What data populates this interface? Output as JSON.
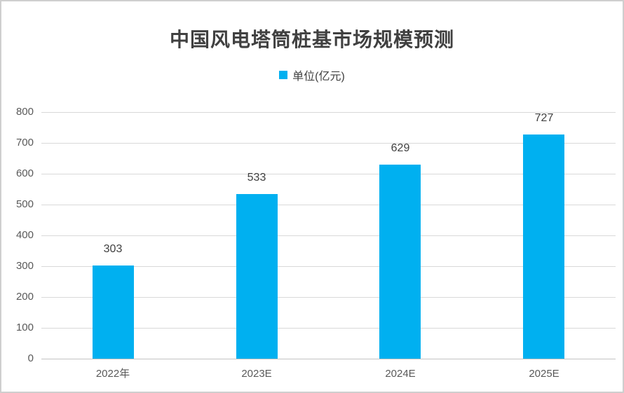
{
  "chart_data": {
    "type": "bar",
    "title": "中国风电塔筒桩基市场规模预测",
    "legend": "单位(亿元)",
    "legend_position": "top",
    "categories": [
      "2022年",
      "2023E",
      "2024E",
      "2025E"
    ],
    "values": [
      303,
      533,
      629,
      727
    ],
    "yticks": [
      0,
      100,
      200,
      300,
      400,
      500,
      600,
      700,
      800
    ],
    "ylim": [
      0,
      800
    ],
    "xlabel": "",
    "ylabel": "",
    "grid": true,
    "bar_color": "#00B0F0",
    "grid_color": "#d9d9d9",
    "axis_color": "#c3c3c3",
    "label_color": "#404040",
    "tick_color": "#595959"
  }
}
